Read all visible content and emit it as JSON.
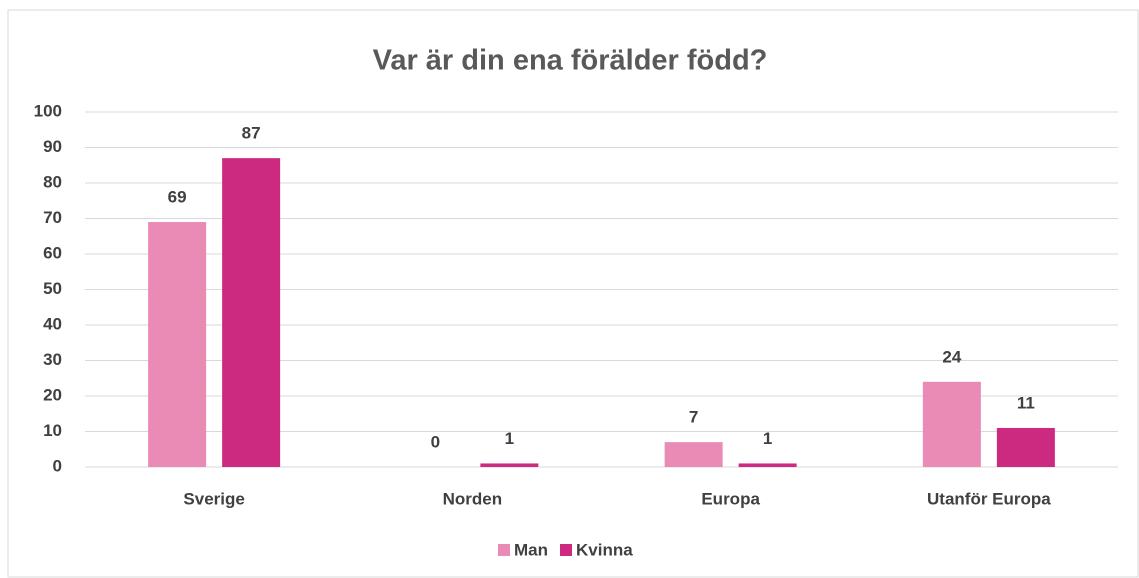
{
  "chart_data": {
    "type": "bar",
    "title": "Var är din ena förälder född?",
    "categories": [
      "Sverige",
      "Norden",
      "Europa",
      "Utanför Europa"
    ],
    "series": [
      {
        "name": "Man",
        "color": "#ea8bb5",
        "values": [
          69,
          0,
          7,
          24
        ]
      },
      {
        "name": "Kvinna",
        "color": "#cc2a80",
        "values": [
          87,
          1,
          1,
          11
        ]
      }
    ],
    "ylim": [
      0,
      100
    ],
    "yticks": [
      0,
      10,
      20,
      30,
      40,
      50,
      60,
      70,
      80,
      90,
      100
    ],
    "grid": true,
    "legend": "bottom"
  }
}
